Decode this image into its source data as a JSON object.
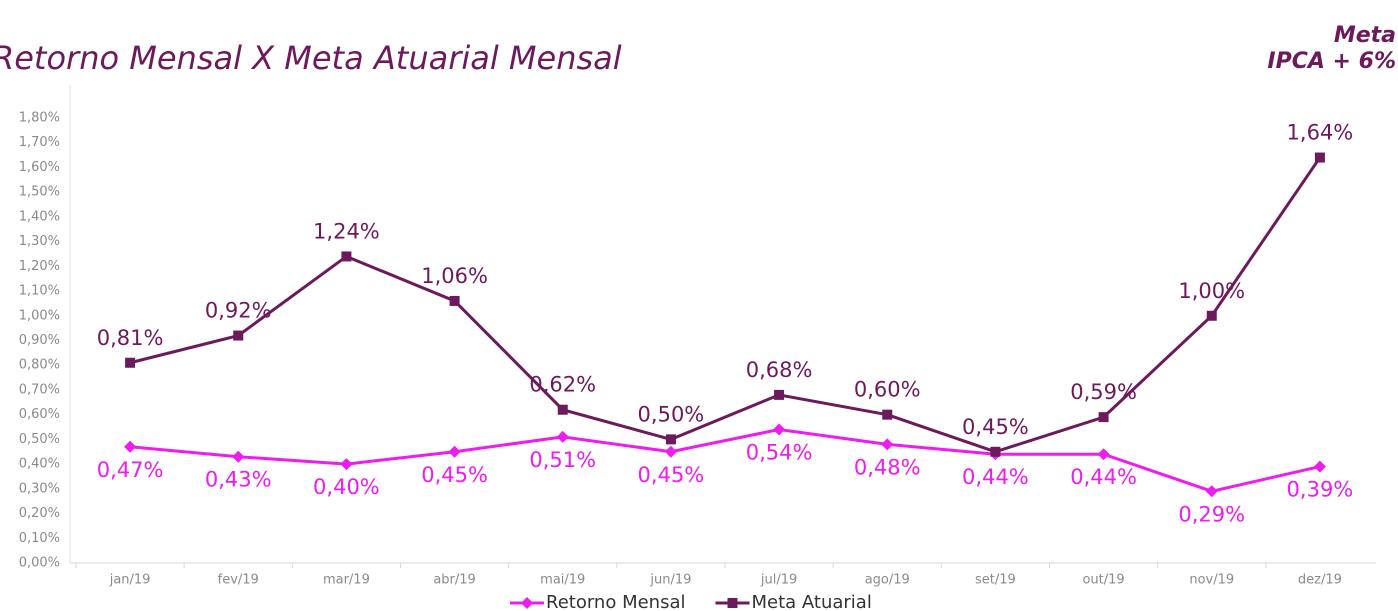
{
  "chart_data": {
    "type": "line",
    "title": "Retorno Mensal X Meta Atuarial Mensal",
    "annotations": [
      "Meta",
      "IPCA + 6%"
    ],
    "categories": [
      "jan/19",
      "fev/19",
      "mar/19",
      "abr/19",
      "mai/19",
      "jun/19",
      "jul/19",
      "ago/19",
      "set/19",
      "out/19",
      "nov/19",
      "dez/19"
    ],
    "series": [
      {
        "name": "Retorno Mensal",
        "color": "#ee1cee",
        "marker": "diamond",
        "values": [
          0.47,
          0.43,
          0.4,
          0.45,
          0.51,
          0.45,
          0.54,
          0.48,
          0.44,
          0.44,
          0.29,
          0.39
        ],
        "value_labels": [
          "0,47%",
          "0,43%",
          "0,40%",
          "0,45%",
          "0,51%",
          "0,45%",
          "0,54%",
          "0,48%",
          "0,44%",
          "0,44%",
          "0,29%",
          "0,39%"
        ]
      },
      {
        "name": "Meta Atuarial",
        "color": "#6d1a5c",
        "marker": "square",
        "values": [
          0.81,
          0.92,
          1.24,
          1.06,
          0.62,
          0.5,
          0.68,
          0.6,
          0.45,
          0.59,
          1.0,
          1.64
        ],
        "value_labels": [
          "0,81%",
          "0,92%",
          "1,24%",
          "1,06%",
          "0,62%",
          "0,50%",
          "0,68%",
          "0,60%",
          "0,45%",
          "0,59%",
          "1,00%",
          "1,64%"
        ]
      }
    ],
    "ylim": [
      0,
      1.8
    ],
    "yticks": [
      {
        "value": 0,
        "label": "0,00%"
      },
      {
        "value": 0.1,
        "label": "0,10%"
      },
      {
        "value": 0.2,
        "label": "0,20%"
      },
      {
        "value": 0.3,
        "label": "0,30%"
      },
      {
        "value": 0.4,
        "label": "0,40%"
      },
      {
        "value": 0.5,
        "label": "0,50%"
      },
      {
        "value": 0.6,
        "label": "0,60%"
      },
      {
        "value": 0.7,
        "label": "0,70%"
      },
      {
        "value": 0.8,
        "label": "0,80%"
      },
      {
        "value": 0.9,
        "label": "0,90%"
      },
      {
        "value": 1.0,
        "label": "1,00%"
      },
      {
        "value": 1.1,
        "label": "1,10%"
      },
      {
        "value": 1.2,
        "label": "1,20%"
      },
      {
        "value": 1.3,
        "label": "1,30%"
      },
      {
        "value": 1.4,
        "label": "1,40%"
      },
      {
        "value": 1.5,
        "label": "1,50%"
      },
      {
        "value": 1.6,
        "label": "1,60%"
      },
      {
        "value": 1.7,
        "label": "1,70%"
      },
      {
        "value": 1.8,
        "label": "1,80%"
      }
    ],
    "grid": false,
    "legend": "bottom"
  }
}
